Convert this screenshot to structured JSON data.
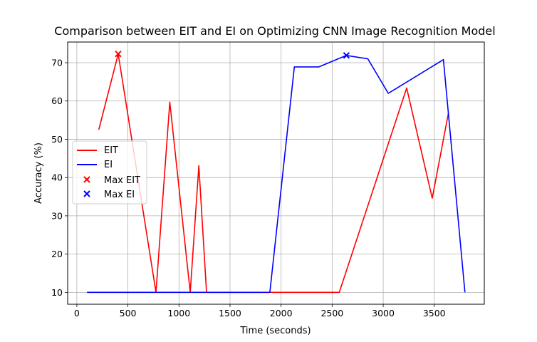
{
  "chart_data": {
    "type": "line",
    "title": "Comparison between EIT and EI on Optimizing CNN Image Recognition Model",
    "xlabel": "Time (seconds)",
    "ylabel": "Accuracy (%)",
    "xlim": [
      -90,
      3990
    ],
    "ylim": [
      6.9,
      75.4
    ],
    "xticks": [
      0,
      500,
      1000,
      1500,
      2000,
      2500,
      3000,
      3500
    ],
    "yticks": [
      10,
      20,
      30,
      40,
      50,
      60,
      70
    ],
    "grid": true,
    "legend_position": "center-left",
    "series": [
      {
        "name": "EIT",
        "color": "#ff0000",
        "x": [
          215,
          405,
          775,
          910,
          1110,
          1195,
          1270,
          1400,
          1900,
          2570,
          3230,
          3480,
          3640
        ],
        "y": [
          52.5,
          72.3,
          10,
          59.7,
          10,
          43.1,
          10,
          10,
          10,
          10,
          63.4,
          34.6,
          57
        ]
      },
      {
        "name": "EI",
        "color": "#0000ff",
        "x": [
          100,
          400,
          800,
          1200,
          1600,
          1890,
          2130,
          2370,
          2640,
          2850,
          3050,
          3590,
          3800
        ],
        "y": [
          10,
          10,
          10,
          10,
          10,
          10,
          68.9,
          68.9,
          71.9,
          71,
          62,
          70.8,
          10
        ]
      }
    ],
    "markers": [
      {
        "name": "Max EIT",
        "color": "#ff0000",
        "x": 405,
        "y": 72.3
      },
      {
        "name": "Max EI",
        "color": "#0000ff",
        "x": 2640,
        "y": 71.9
      }
    ]
  }
}
